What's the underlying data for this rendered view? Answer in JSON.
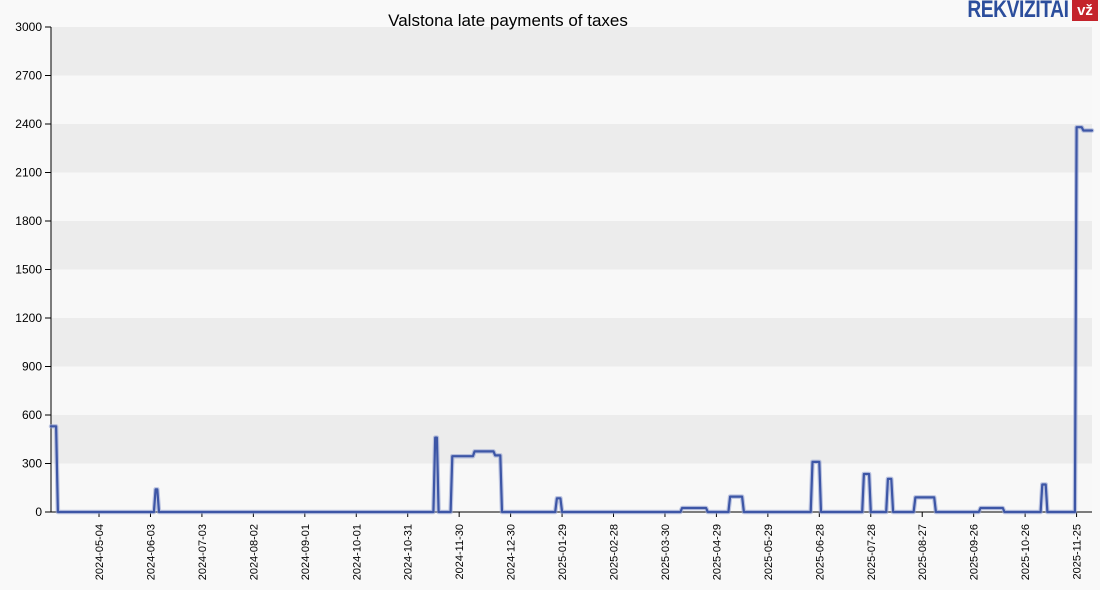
{
  "header": {
    "logo": {
      "text": "REKVIZITAI",
      "badge": "vž",
      "blue": "#2b4d9c",
      "red": "#c4232b"
    }
  },
  "chart_data": {
    "type": "line",
    "title": "Valstona late payments of taxes",
    "xlabel": "",
    "ylabel": "",
    "ylim": [
      0,
      3000
    ],
    "y_ticks": [
      0,
      300,
      600,
      900,
      1200,
      1500,
      1800,
      2100,
      2400,
      2700,
      3000
    ],
    "x_start": "2024-04-06",
    "x_end": "2025-12-04",
    "x_tick_labels": [
      "2024-05-04",
      "2024-06-03",
      "2024-07-03",
      "2024-08-02",
      "2024-09-01",
      "2024-10-01",
      "2024-10-31",
      "2024-11-30",
      "2024-12-30",
      "2025-01-29",
      "2025-02-28",
      "2025-03-30",
      "2025-04-29",
      "2025-05-29",
      "2025-06-28",
      "2025-07-28",
      "2025-08-27",
      "2025-09-26",
      "2025-10-26",
      "2025-11-25"
    ],
    "grid": "alternating horizontal bands every 300 units",
    "legend": "none",
    "series": [
      {
        "name": "Valstona late payments of taxes",
        "points": [
          [
            "2024-04-06",
            530
          ],
          [
            "2024-04-09",
            530
          ],
          [
            "2024-04-10",
            0
          ],
          [
            "2024-06-05",
            0
          ],
          [
            "2024-06-06",
            140
          ],
          [
            "2024-06-07",
            140
          ],
          [
            "2024-06-08",
            0
          ],
          [
            "2024-11-15",
            0
          ],
          [
            "2024-11-16",
            460
          ],
          [
            "2024-11-17",
            460
          ],
          [
            "2024-11-18",
            0
          ],
          [
            "2024-11-25",
            0
          ],
          [
            "2024-11-26",
            345
          ],
          [
            "2024-12-08",
            345
          ],
          [
            "2024-12-09",
            375
          ],
          [
            "2024-12-20",
            375
          ],
          [
            "2024-12-21",
            350
          ],
          [
            "2024-12-24",
            350
          ],
          [
            "2024-12-25",
            0
          ],
          [
            "2025-01-25",
            0
          ],
          [
            "2025-01-26",
            85
          ],
          [
            "2025-01-28",
            85
          ],
          [
            "2025-01-29",
            0
          ],
          [
            "2025-04-08",
            0
          ],
          [
            "2025-04-09",
            25
          ],
          [
            "2025-04-23",
            25
          ],
          [
            "2025-04-24",
            0
          ],
          [
            "2025-05-06",
            0
          ],
          [
            "2025-05-07",
            95
          ],
          [
            "2025-05-14",
            95
          ],
          [
            "2025-05-15",
            0
          ],
          [
            "2025-06-23",
            0
          ],
          [
            "2025-06-24",
            310
          ],
          [
            "2025-06-28",
            310
          ],
          [
            "2025-06-29",
            0
          ],
          [
            "2025-07-23",
            0
          ],
          [
            "2025-07-24",
            235
          ],
          [
            "2025-07-27",
            235
          ],
          [
            "2025-07-28",
            0
          ],
          [
            "2025-08-06",
            0
          ],
          [
            "2025-08-07",
            205
          ],
          [
            "2025-08-09",
            205
          ],
          [
            "2025-08-10",
            0
          ],
          [
            "2025-08-22",
            0
          ],
          [
            "2025-08-23",
            90
          ],
          [
            "2025-09-03",
            90
          ],
          [
            "2025-09-04",
            0
          ],
          [
            "2025-09-29",
            0
          ],
          [
            "2025-09-30",
            25
          ],
          [
            "2025-10-13",
            25
          ],
          [
            "2025-10-14",
            0
          ],
          [
            "2025-11-04",
            0
          ],
          [
            "2025-11-05",
            170
          ],
          [
            "2025-11-07",
            170
          ],
          [
            "2025-11-08",
            0
          ],
          [
            "2025-11-24",
            0
          ],
          [
            "2025-11-25",
            2380
          ],
          [
            "2025-11-28",
            2380
          ],
          [
            "2025-11-29",
            2360
          ],
          [
            "2025-12-04",
            2360
          ]
        ]
      }
    ],
    "colors": {
      "line": "#3d56a6",
      "line_glow": "#96a4d2",
      "band_dark": "#ececec",
      "band_light": "#f8f8f8",
      "axis": "#000000",
      "tick_text": "#000000"
    }
  }
}
